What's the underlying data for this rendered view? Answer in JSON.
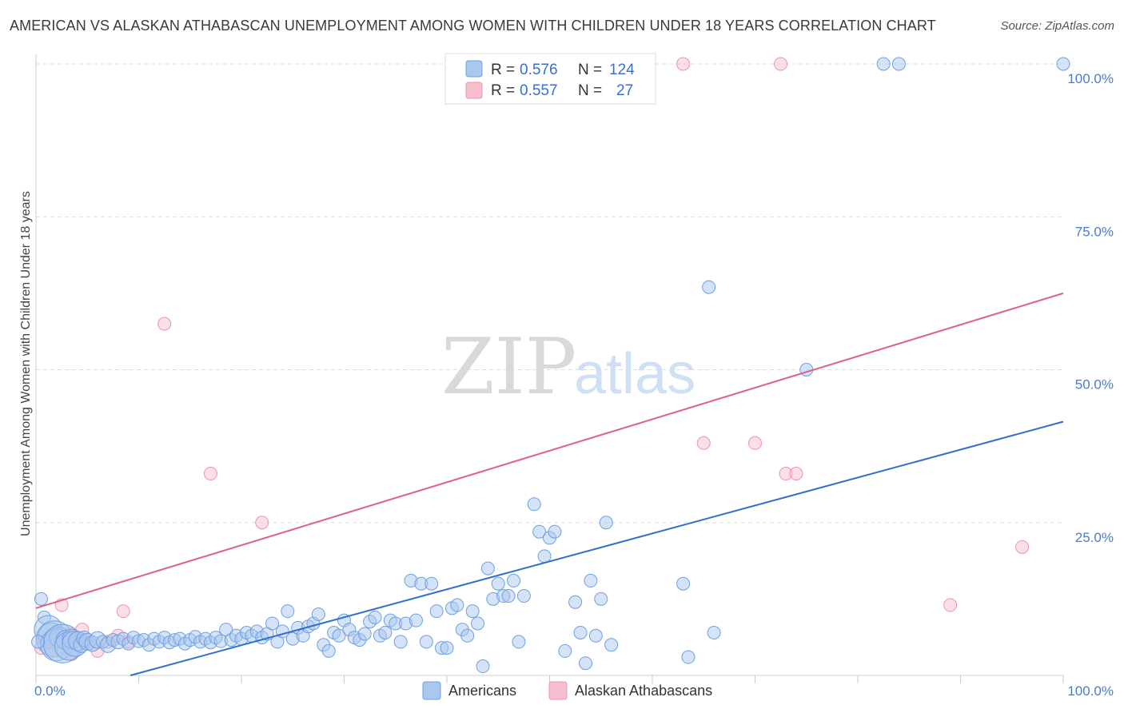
{
  "title": "AMERICAN VS ALASKAN ATHABASCAN UNEMPLOYMENT AMONG WOMEN WITH CHILDREN UNDER 18 YEARS CORRELATION CHART",
  "source": "Source: ZipAtlas.com",
  "watermark": {
    "zip": "ZIP",
    "atlas": "atlas"
  },
  "legend_top": [
    {
      "r_label": "R =",
      "r_value": "0.576",
      "n_label": "N =",
      "n_value": "124"
    },
    {
      "r_label": "R =",
      "r_value": "0.557",
      "n_label": "N =",
      "n_value": "27"
    }
  ],
  "colors": {
    "americans_fill": "#a9c8f0",
    "americans_stroke": "#6f9fe0",
    "americans_line": "#2e6fd0",
    "alaskan_fill": "#f6bfd0",
    "alaskan_stroke": "#ee93ae",
    "alaskan_line": "#e0608a",
    "grid": "#dddddd",
    "tick_label": "#4a7bd0"
  },
  "chart_data": {
    "type": "scatter",
    "xlabel": "",
    "ylabel": "Unemployment Among Women with Children Under 18 years",
    "xlim": [
      0,
      100
    ],
    "ylim": [
      0,
      100
    ],
    "y_ticks": [
      "25.0%",
      "50.0%",
      "75.0%",
      "100.0%"
    ],
    "x_ticks": [
      "0.0%",
      "100.0%"
    ],
    "grid": "horizontal dashed",
    "legend_position": "top-center",
    "series": [
      {
        "name": "Americans",
        "r": 0.576,
        "n": 124,
        "trend": {
          "x1": 0,
          "y1": -4.2,
          "x2": 100,
          "y2": 41.5
        },
        "points": [
          [
            0.5,
            12.5,
            1
          ],
          [
            0.8,
            9.5,
            1
          ],
          [
            1.2,
            7.5,
            2.2
          ],
          [
            1.5,
            6.5,
            2
          ],
          [
            1.8,
            6,
            2.8
          ],
          [
            2,
            5,
            2.5
          ],
          [
            2.3,
            6.2,
            1.6
          ],
          [
            2.6,
            5.2,
            3
          ],
          [
            2.9,
            5.8,
            1.5
          ],
          [
            3.2,
            4.8,
            2.2
          ],
          [
            3.5,
            6,
            1.5
          ],
          [
            3.8,
            5.2,
            2
          ],
          [
            4.1,
            5.6,
            1.5
          ],
          [
            4.4,
            5,
            1.2
          ],
          [
            4.7,
            6,
            1.2
          ],
          [
            5,
            5.5,
            1.3
          ],
          [
            5.5,
            5.2,
            1.2
          ],
          [
            6,
            5.8,
            1.3
          ],
          [
            6.5,
            5.5,
            1
          ],
          [
            7,
            5,
            1.2
          ],
          [
            7.5,
            5.8,
            1
          ],
          [
            8,
            5.5,
            1.1
          ],
          [
            8.5,
            6,
            1
          ],
          [
            9,
            5.2,
            1
          ],
          [
            9.5,
            6.2,
            1
          ],
          [
            10,
            5.6,
            1
          ],
          [
            10.5,
            5.8,
            1
          ],
          [
            11,
            5,
            1
          ],
          [
            11.5,
            6,
            1
          ],
          [
            12,
            5.5,
            1
          ],
          [
            12.5,
            6.2,
            1
          ],
          [
            13,
            5.4,
            1
          ],
          [
            13.5,
            5.8,
            1
          ],
          [
            14,
            6,
            1
          ],
          [
            14.5,
            5.2,
            1
          ],
          [
            15,
            5.8,
            1
          ],
          [
            15.5,
            6.3,
            1
          ],
          [
            16,
            5.5,
            1
          ],
          [
            16.5,
            6,
            1
          ],
          [
            17,
            5.4,
            1
          ],
          [
            17.5,
            6.2,
            1
          ],
          [
            18,
            5.6,
            1
          ],
          [
            18.5,
            7.5,
            1
          ],
          [
            19,
            5.8,
            1
          ],
          [
            19.5,
            6.5,
            1
          ],
          [
            20,
            6,
            1
          ],
          [
            20.5,
            7,
            1
          ],
          [
            21,
            6.5,
            1
          ],
          [
            21.5,
            7.2,
            1
          ],
          [
            22,
            6.2,
            1
          ],
          [
            22.5,
            6.8,
            1
          ],
          [
            23,
            8.5,
            1
          ],
          [
            23.5,
            5.5,
            1
          ],
          [
            24,
            7.2,
            1
          ],
          [
            24.5,
            10.5,
            1
          ],
          [
            25,
            6,
            1
          ],
          [
            25.5,
            7.8,
            1
          ],
          [
            26,
            6.5,
            1
          ],
          [
            26.5,
            8,
            1
          ],
          [
            27,
            8.5,
            1
          ],
          [
            27.5,
            10,
            1
          ],
          [
            28,
            5,
            1
          ],
          [
            28.5,
            4,
            1
          ],
          [
            29,
            7,
            1
          ],
          [
            29.5,
            6.5,
            1
          ],
          [
            30,
            9,
            1
          ],
          [
            30.5,
            7.5,
            1
          ],
          [
            31,
            6.2,
            1
          ],
          [
            31.5,
            5.8,
            1
          ],
          [
            32,
            6.8,
            1
          ],
          [
            32.5,
            8.8,
            1
          ],
          [
            33,
            9.5,
            1
          ],
          [
            33.5,
            6.5,
            1
          ],
          [
            34,
            7,
            1
          ],
          [
            34.5,
            9,
            1
          ],
          [
            35,
            8.5,
            1
          ],
          [
            35.5,
            5.5,
            1
          ],
          [
            36,
            8.5,
            1
          ],
          [
            36.5,
            15.5,
            1
          ],
          [
            37,
            9,
            1
          ],
          [
            37.5,
            15,
            1
          ],
          [
            38,
            5.5,
            1
          ],
          [
            38.5,
            15,
            1
          ],
          [
            39,
            10.5,
            1
          ],
          [
            39.5,
            4.5,
            1
          ],
          [
            40,
            4.5,
            1
          ],
          [
            40.5,
            11,
            1
          ],
          [
            41,
            11.5,
            1
          ],
          [
            41.5,
            7.5,
            1
          ],
          [
            42,
            6.5,
            1
          ],
          [
            42.5,
            10.5,
            1
          ],
          [
            43,
            8.5,
            1
          ],
          [
            43.5,
            1.5,
            1
          ],
          [
            44,
            17.5,
            1
          ],
          [
            44.5,
            12.5,
            1
          ],
          [
            45,
            15,
            1
          ],
          [
            45.5,
            13,
            1
          ],
          [
            46,
            13,
            1
          ],
          [
            46.5,
            15.5,
            1
          ],
          [
            47,
            5.5,
            1
          ],
          [
            47.5,
            13,
            1
          ],
          [
            48.5,
            28,
            1
          ],
          [
            49,
            23.5,
            1
          ],
          [
            49.5,
            19.5,
            1
          ],
          [
            50,
            22.5,
            1
          ],
          [
            50.5,
            23.5,
            1
          ],
          [
            51.5,
            4,
            1
          ],
          [
            52.5,
            12,
            1
          ],
          [
            53,
            7,
            1
          ],
          [
            53.5,
            2,
            1
          ],
          [
            54,
            15.5,
            1
          ],
          [
            54.5,
            6.5,
            1
          ],
          [
            55,
            12.5,
            1
          ],
          [
            55.5,
            25,
            1
          ],
          [
            56,
            5,
            1
          ],
          [
            63,
            15,
            1
          ],
          [
            63.5,
            3,
            1
          ],
          [
            66,
            7,
            1
          ],
          [
            75,
            50,
            1
          ],
          [
            82.5,
            100,
            1
          ],
          [
            84,
            100,
            1
          ],
          [
            100,
            100,
            1
          ],
          [
            65.5,
            63.5,
            1
          ],
          [
            0.2,
            5.5,
            1
          ]
        ]
      },
      {
        "name": "Alaskan Athabascans",
        "r": 0.557,
        "n": 27,
        "trend": {
          "x1": 0,
          "y1": 11,
          "x2": 100,
          "y2": 62.5
        },
        "points": [
          [
            0.5,
            4.5,
            1
          ],
          [
            1,
            5.5,
            1
          ],
          [
            1.5,
            4,
            1
          ],
          [
            2,
            6.5,
            1
          ],
          [
            2.5,
            11.5,
            1
          ],
          [
            3,
            5,
            1
          ],
          [
            3.5,
            3.5,
            1
          ],
          [
            4,
            6,
            1
          ],
          [
            4.5,
            7.5,
            1
          ],
          [
            5,
            5.5,
            1
          ],
          [
            6,
            4,
            1
          ],
          [
            7,
            5.5,
            1
          ],
          [
            8,
            6.5,
            1
          ],
          [
            8.5,
            10.5,
            1
          ],
          [
            9,
            5.5,
            1
          ],
          [
            12.5,
            57.5,
            1
          ],
          [
            17,
            33,
            1
          ],
          [
            22,
            25,
            1
          ],
          [
            63,
            100,
            1
          ],
          [
            72.5,
            100,
            1
          ],
          [
            65,
            38,
            1
          ],
          [
            70,
            38,
            1
          ],
          [
            73,
            33,
            1
          ],
          [
            74,
            33,
            1
          ],
          [
            96,
            21,
            1
          ],
          [
            89,
            11.5,
            1
          ],
          [
            3.3,
            6.8,
            1
          ]
        ]
      }
    ]
  },
  "bottom_legend": [
    {
      "label": "Americans"
    },
    {
      "label": "Alaskan Athabascans"
    }
  ]
}
